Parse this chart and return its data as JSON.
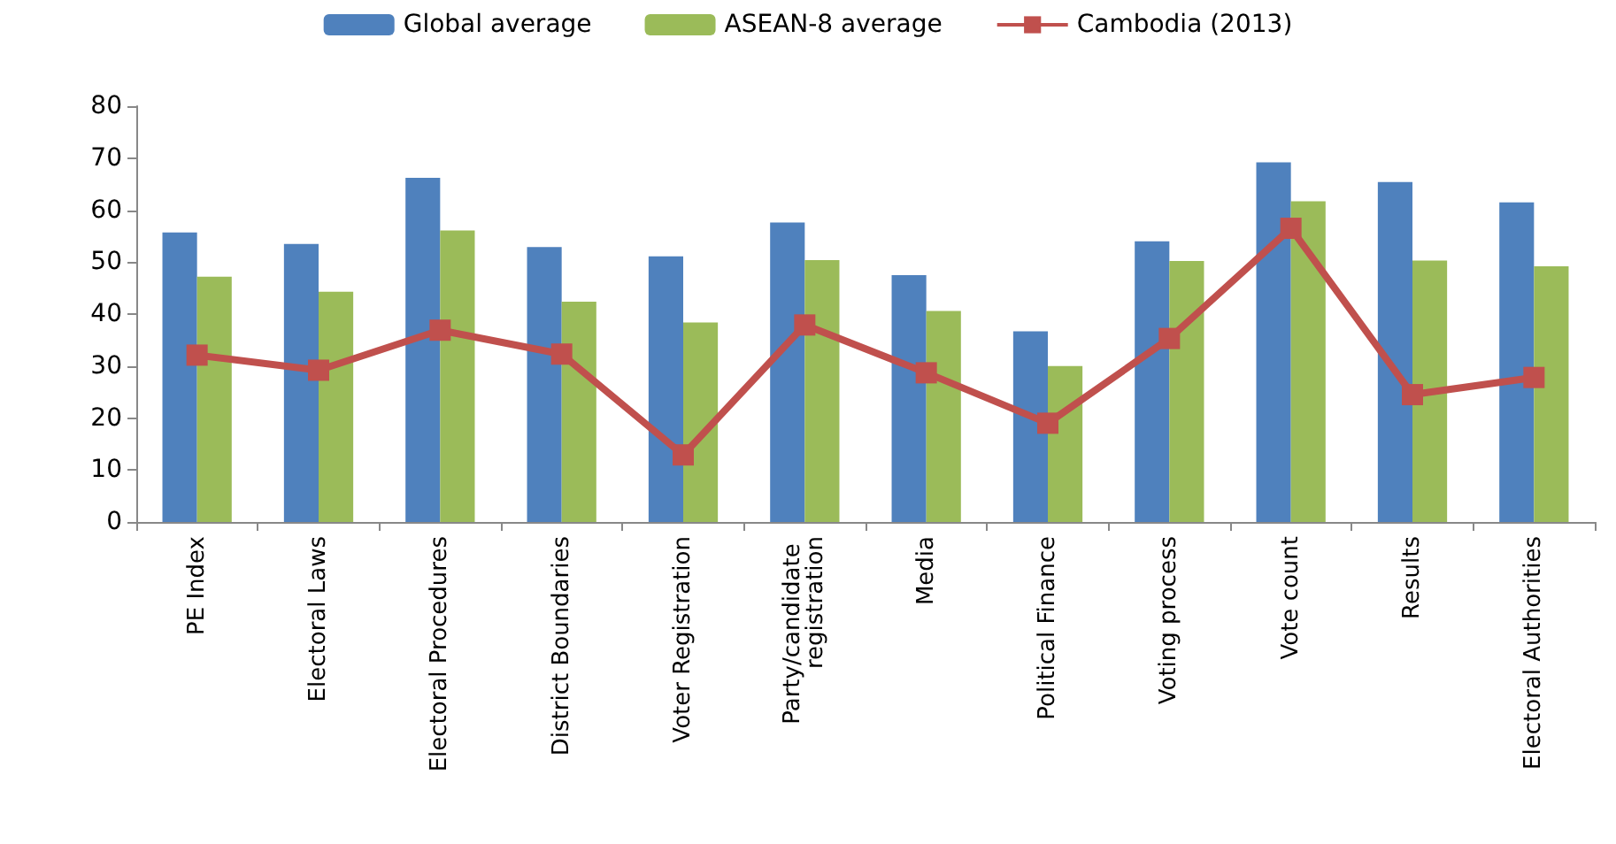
{
  "chart_data": {
    "type": "bar",
    "categories": [
      "PE Index",
      "Electoral Laws",
      "Electoral Procedures",
      "District Boundaries",
      "Voter Registration",
      "Party/candidate registration",
      "Media",
      "Political Finance",
      "Voting process",
      "Vote count",
      "Results",
      "Electoral Authorities"
    ],
    "series": [
      {
        "name": "Global average",
        "color": "#4f81bd",
        "values": [
          55.7,
          53.5,
          66.2,
          52.9,
          51.1,
          57.6,
          47.5,
          36.7,
          54,
          69.2,
          65.4,
          61.5
        ]
      },
      {
        "name": "ASEAN-8 average",
        "color": "#9bbb59",
        "values": [
          47.2,
          44.3,
          56.1,
          42.4,
          38.4,
          50.4,
          40.6,
          30,
          50.2,
          61.7,
          50.3,
          49.2
        ]
      },
      {
        "name": "Cambodia (2013)",
        "type": "line",
        "color": "#c0504d",
        "marker": "square",
        "values": [
          32.1,
          29.2,
          36.9,
          32.3,
          12.9,
          37.9,
          28.7,
          19,
          35.3,
          56.5,
          24.5,
          27.8
        ]
      }
    ],
    "ylim": [
      0,
      80
    ],
    "yticks": [
      0,
      10,
      20,
      30,
      40,
      50,
      60,
      70,
      80
    ],
    "grid": false,
    "legend": "top"
  }
}
